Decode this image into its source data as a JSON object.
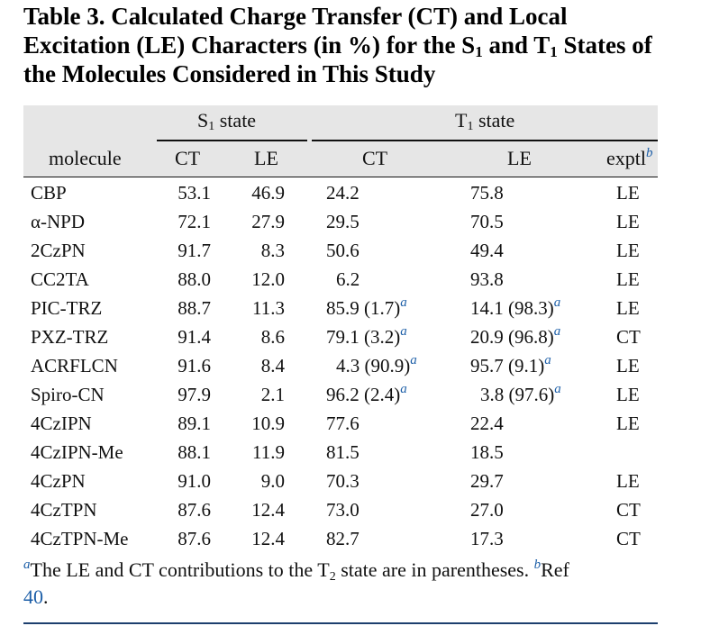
{
  "caption": {
    "line1": "Table 3. Calculated Charge Transfer (CT) and Local",
    "line2_a": "Excitation (LE) Characters (in %) for the S",
    "line2_sub1": "1",
    "line2_b": " and T",
    "line2_sub2": "1",
    "line2_c": " States of",
    "line3": "the Molecules Considered in This Study"
  },
  "header": {
    "s1_group": {
      "letter": "S",
      "sub": "1",
      "text": " state"
    },
    "t1_group": {
      "letter": "T",
      "sub": "1",
      "text": " state"
    },
    "columns": {
      "molecule": "molecule",
      "s1_ct": "CT",
      "s1_le": "LE",
      "t1_ct": "CT",
      "t1_le": "LE",
      "exptl": "exptl",
      "exptl_sup": "b"
    }
  },
  "rows": [
    {
      "molecule": "CBP",
      "s1_ct": "53.1",
      "s1_le": "46.9",
      "t1_ct": "24.2",
      "t1_ct_sup": "",
      "t1_le": "75.8",
      "t1_le_sup": "",
      "exptl": "LE"
    },
    {
      "molecule": "α-NPD",
      "s1_ct": "72.1",
      "s1_le": "27.9",
      "t1_ct": "29.5",
      "t1_ct_sup": "",
      "t1_le": "70.5",
      "t1_le_sup": "",
      "exptl": "LE"
    },
    {
      "molecule": "2CzPN",
      "s1_ct": "91.7",
      "s1_le": "8.3",
      "t1_ct": "50.6",
      "t1_ct_sup": "",
      "t1_le": "49.4",
      "t1_le_sup": "",
      "exptl": "LE"
    },
    {
      "molecule": "CC2TA",
      "s1_ct": "88.0",
      "s1_le": "12.0",
      "t1_ct": "6.2",
      "t1_ct_sup": "",
      "t1_le": "93.8",
      "t1_le_sup": "",
      "exptl": "LE"
    },
    {
      "molecule": "PIC-TRZ",
      "s1_ct": "88.7",
      "s1_le": "11.3",
      "t1_ct": "85.9 (1.7)",
      "t1_ct_sup": "a",
      "t1_le": "14.1 (98.3)",
      "t1_le_sup": "a",
      "exptl": "LE"
    },
    {
      "molecule": "PXZ-TRZ",
      "s1_ct": "91.4",
      "s1_le": "8.6",
      "t1_ct": "79.1 (3.2)",
      "t1_ct_sup": "a",
      "t1_le": "20.9 (96.8)",
      "t1_le_sup": "a",
      "exptl": "CT"
    },
    {
      "molecule": "ACRFLCN",
      "s1_ct": "91.6",
      "s1_le": "8.4",
      "t1_ct": "4.3 (90.9)",
      "t1_ct_sup": "a",
      "t1_le": "95.7 (9.1)",
      "t1_le_sup": "a",
      "exptl": "LE"
    },
    {
      "molecule": "Spiro-CN",
      "s1_ct": "97.9",
      "s1_le": "2.1",
      "t1_ct": "96.2 (2.4)",
      "t1_ct_sup": "a",
      "t1_le": "3.8 (97.6)",
      "t1_le_sup": "a",
      "exptl": "LE"
    },
    {
      "molecule": "4CzIPN",
      "s1_ct": "89.1",
      "s1_le": "10.9",
      "t1_ct": "77.6",
      "t1_ct_sup": "",
      "t1_le": "22.4",
      "t1_le_sup": "",
      "exptl": "LE"
    },
    {
      "molecule": "4CzIPN-Me",
      "s1_ct": "88.1",
      "s1_le": "11.9",
      "t1_ct": "81.5",
      "t1_ct_sup": "",
      "t1_le": "18.5",
      "t1_le_sup": "",
      "exptl": ""
    },
    {
      "molecule": "4CzPN",
      "s1_ct": "91.0",
      "s1_le": "9.0",
      "t1_ct": "70.3",
      "t1_ct_sup": "",
      "t1_le": "29.7",
      "t1_le_sup": "",
      "exptl": "LE"
    },
    {
      "molecule": "4CzTPN",
      "s1_ct": "87.6",
      "s1_le": "12.4",
      "t1_ct": "73.0",
      "t1_ct_sup": "",
      "t1_le": "27.0",
      "t1_le_sup": "",
      "exptl": "CT"
    },
    {
      "molecule": "4CzTPN-Me",
      "s1_ct": "87.6",
      "s1_le": "12.4",
      "t1_ct": "82.7",
      "t1_ct_sup": "",
      "t1_le": "17.3",
      "t1_le_sup": "",
      "exptl": "CT"
    }
  ],
  "footnote": {
    "mark_a": "a",
    "text_a1": "The LE and CT contributions to the T",
    "text_a_sub": "2",
    "text_a2": " state are in parentheses. ",
    "mark_b": "b",
    "text_b": "Ref",
    "ref": "40",
    "tail": "."
  },
  "colors": {
    "header_band": "#e6e6e6",
    "link": "#1d5fa8",
    "rule": "#111111"
  }
}
